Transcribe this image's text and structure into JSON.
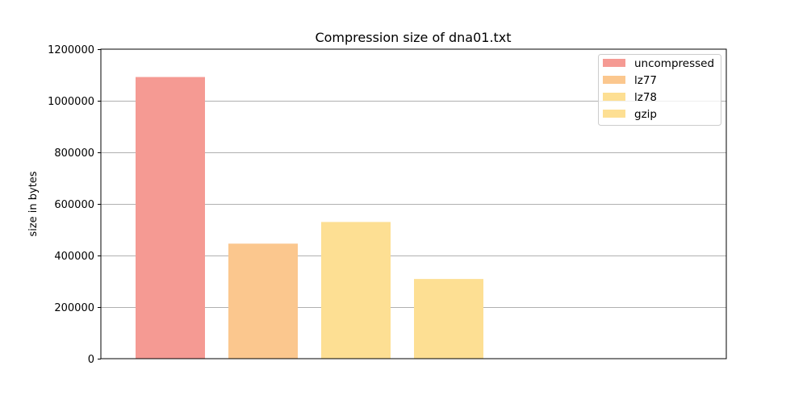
{
  "chart_data": {
    "type": "bar",
    "title": "Compression size of dna01.txt",
    "xlabel": "",
    "ylabel": "size in bytes",
    "ylim": [
      0,
      1200000
    ],
    "yticks": [
      0,
      200000,
      400000,
      600000,
      800000,
      1000000,
      1200000
    ],
    "ytick_labels": [
      "0",
      "200000",
      "400000",
      "600000",
      "800000",
      "1000000",
      "1200000"
    ],
    "grid": "y",
    "legend_position": "top-right",
    "series": [
      {
        "name": "uncompressed",
        "value": 1092000,
        "color": "#f59a93"
      },
      {
        "name": "lz77",
        "value": 446000,
        "color": "#fbc78e"
      },
      {
        "name": "lz78",
        "value": 530000,
        "color": "#fddf93"
      },
      {
        "name": "gzip",
        "value": 309000,
        "color": "#fddf93"
      }
    ]
  }
}
